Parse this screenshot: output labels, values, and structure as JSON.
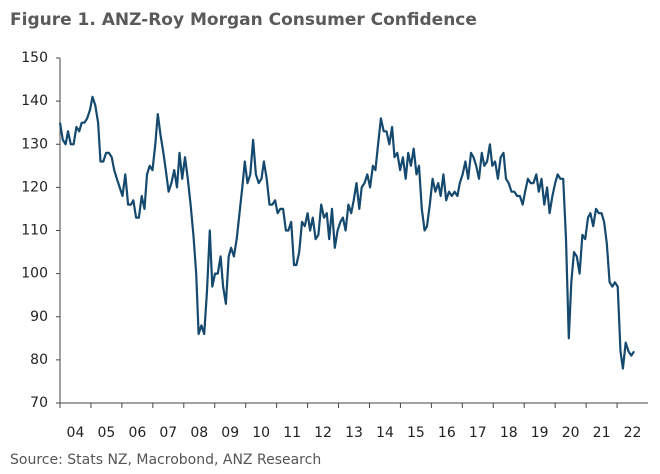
{
  "chart_data": {
    "type": "line",
    "title": "Figure 1.  ANZ-Roy Morgan Consumer Confidence",
    "source": "Source: Stats NZ, Macrobond, ANZ Research",
    "color": "#15496e",
    "x": [
      2004.0,
      2004.09,
      2004.18,
      2004.26,
      2004.35,
      2004.44,
      2004.53,
      2004.62,
      2004.7,
      2004.79,
      2004.88,
      2004.97,
      2005.05,
      2005.14,
      2005.23,
      2005.31,
      2005.4,
      2005.49,
      2005.58,
      2005.67,
      2005.75,
      2005.84,
      2005.93,
      2006.02,
      2006.11,
      2006.2,
      2006.29,
      2006.37,
      2006.46,
      2006.55,
      2006.64,
      2006.73,
      2006.81,
      2006.9,
      2006.99,
      2007.08,
      2007.16,
      2007.25,
      2007.34,
      2007.42,
      2007.51,
      2007.6,
      2007.69,
      2007.78,
      2007.86,
      2007.95,
      2008.04,
      2008.13,
      2008.22,
      2008.31,
      2008.4,
      2008.48,
      2008.57,
      2008.66,
      2008.75,
      2008.84,
      2008.92,
      2009.01,
      2009.1,
      2009.19,
      2009.27,
      2009.36,
      2009.45,
      2009.53,
      2009.62,
      2009.71,
      2009.8,
      2009.89,
      2009.97,
      2010.06,
      2010.15,
      2010.24,
      2010.33,
      2010.42,
      2010.51,
      2010.59,
      2010.68,
      2010.77,
      2010.86,
      2010.95,
      2011.03,
      2011.12,
      2011.21,
      2011.3,
      2011.38,
      2011.47,
      2011.56,
      2011.64,
      2011.73,
      2011.82,
      2011.91,
      2012.0,
      2012.08,
      2012.17,
      2012.26,
      2012.35,
      2012.44,
      2012.53,
      2012.62,
      2012.7,
      2012.79,
      2012.88,
      2012.97,
      2013.06,
      2013.14,
      2013.23,
      2013.32,
      2013.41,
      2013.49,
      2013.58,
      2013.67,
      2013.75,
      2013.84,
      2013.93,
      2014.02,
      2014.11,
      2014.19,
      2014.28,
      2014.37,
      2014.46,
      2014.55,
      2014.64,
      2014.73,
      2014.81,
      2014.9,
      2014.99,
      2015.08,
      2015.17,
      2015.25,
      2015.34,
      2015.43,
      2015.52,
      2015.6,
      2015.69,
      2015.78,
      2015.86,
      2015.95,
      2016.04,
      2016.13,
      2016.22,
      2016.3,
      2016.39,
      2016.48,
      2016.57,
      2016.66,
      2016.75,
      2016.84,
      2016.92,
      2017.01,
      2017.1,
      2017.19,
      2017.28,
      2017.36,
      2017.45,
      2017.54,
      2017.63,
      2017.71,
      2017.8,
      2017.89,
      2017.97,
      2018.06,
      2018.15,
      2018.24,
      2018.33,
      2018.41,
      2018.5,
      2018.59,
      2018.68,
      2018.77,
      2018.86,
      2018.95,
      2019.03,
      2019.12,
      2019.21,
      2019.3,
      2019.39,
      2019.47,
      2019.56,
      2019.65,
      2019.74,
      2019.82,
      2019.91,
      2020.0,
      2020.08,
      2020.17,
      2020.26,
      2020.35,
      2020.44,
      2020.52,
      2020.61,
      2020.7,
      2020.79,
      2020.88,
      2020.97,
      2021.06,
      2021.14,
      2021.23,
      2021.32,
      2021.41,
      2021.5,
      2021.58,
      2021.67,
      2021.76,
      2021.85,
      2021.93,
      2022.02,
      2022.11,
      2022.19,
      2022.28,
      2022.37,
      2022.46,
      2022.55
    ],
    "values": [
      135,
      131,
      130,
      133,
      130,
      130,
      134,
      133,
      135,
      135,
      136,
      138,
      141,
      139,
      135,
      126,
      126,
      128,
      128,
      127,
      124,
      122,
      120,
      118,
      123,
      116,
      116,
      117,
      113,
      113,
      118,
      115,
      123,
      125,
      124,
      130,
      137,
      132,
      128,
      124,
      119,
      121,
      124,
      120,
      128,
      122,
      127,
      122,
      116,
      109,
      100,
      86,
      88,
      86,
      96,
      110,
      97,
      100,
      100,
      104,
      97,
      93,
      104,
      106,
      104,
      108,
      114,
      120,
      126,
      121,
      123,
      131,
      123,
      121,
      122,
      126,
      122,
      116,
      116,
      117,
      114,
      115,
      115,
      110,
      110,
      112,
      102,
      102,
      105,
      112,
      111,
      114,
      110,
      113,
      108,
      109,
      116,
      113,
      114,
      108,
      115,
      106,
      110,
      112,
      113,
      110,
      116,
      114,
      117,
      121,
      115,
      120,
      121,
      123,
      120,
      125,
      124,
      130,
      136,
      133,
      133,
      130,
      134,
      127,
      128,
      124,
      127,
      122,
      128,
      125,
      129,
      123,
      125,
      115,
      110,
      111,
      116,
      122,
      119,
      121,
      118,
      123,
      117,
      119,
      118,
      119,
      118,
      121,
      123,
      126,
      122,
      128,
      127,
      125,
      122,
      128,
      125,
      126,
      130,
      125,
      126,
      122,
      127,
      128,
      122,
      121,
      119,
      119,
      118,
      118,
      116,
      119,
      122,
      121,
      121,
      123,
      119,
      122,
      116,
      120,
      114,
      118,
      121,
      123,
      122,
      122,
      108,
      85,
      98,
      105,
      104,
      100,
      109,
      108,
      113,
      114,
      111,
      115,
      114,
      114,
      112,
      107,
      98,
      97,
      98,
      97,
      82,
      78,
      84,
      82,
      81,
      82
    ],
    "xlim": [
      2004,
      2023
    ],
    "xticks": [
      {
        "value": 2004,
        "label": "04"
      },
      {
        "value": 2005,
        "label": "05"
      },
      {
        "value": 2006,
        "label": "06"
      },
      {
        "value": 2007,
        "label": "07"
      },
      {
        "value": 2008,
        "label": "08"
      },
      {
        "value": 2009,
        "label": "09"
      },
      {
        "value": 2010,
        "label": "10"
      },
      {
        "value": 2011,
        "label": "11"
      },
      {
        "value": 2012,
        "label": "12"
      },
      {
        "value": 2013,
        "label": "13"
      },
      {
        "value": 2014,
        "label": "14"
      },
      {
        "value": 2015,
        "label": "15"
      },
      {
        "value": 2016,
        "label": "16"
      },
      {
        "value": 2017,
        "label": "17"
      },
      {
        "value": 2018,
        "label": "18"
      },
      {
        "value": 2019,
        "label": "19"
      },
      {
        "value": 2020,
        "label": "20"
      },
      {
        "value": 2021,
        "label": "21"
      },
      {
        "value": 2022,
        "label": "22"
      }
    ],
    "ylim": [
      70,
      150
    ],
    "yticks": [
      70,
      80,
      90,
      100,
      110,
      120,
      130,
      140,
      150
    ],
    "grid": false
  }
}
